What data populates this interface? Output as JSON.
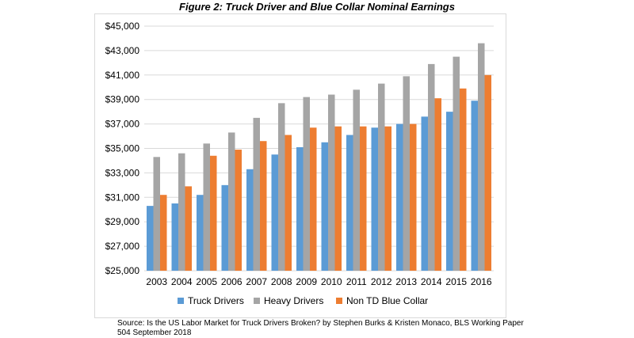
{
  "title": "Figure 2: Truck Driver and Blue Collar Nominal Earnings",
  "source": "Source: Is the US Labor Market for Truck Drivers Broken?  by Stephen Burks & Kristen Monaco, BLS Working Paper 504 September 2018",
  "colors": {
    "truck_drivers": "#5b9bd5",
    "heavy_drivers": "#a5a5a5",
    "non_td_blue_collar": "#ed7d31",
    "gridline": "#d9d9d9"
  },
  "chart_data": {
    "type": "bar",
    "title": "Figure 2: Truck Driver and Blue Collar Nominal Earnings",
    "xlabel": "",
    "ylabel": "",
    "ylim": [
      25000,
      45000
    ],
    "yticks": [
      25000,
      27000,
      29000,
      31000,
      33000,
      35000,
      37000,
      39000,
      41000,
      43000,
      45000
    ],
    "ytick_labels": [
      "$25,000",
      "$27,000",
      "$29,000",
      "$31,000",
      "$33,000",
      "$35,000",
      "$37,000",
      "$39,000",
      "$41,000",
      "$43,000",
      "$45,000"
    ],
    "grid": true,
    "legend": "bottom",
    "categories": [
      "2003",
      "2004",
      "2005",
      "2006",
      "2007",
      "2008",
      "2009",
      "2010",
      "2011",
      "2012",
      "2013",
      "2014",
      "2015",
      "2016"
    ],
    "series": [
      {
        "name": "Truck Drivers",
        "values": [
          30300,
          30500,
          31200,
          32000,
          33300,
          34500,
          35100,
          35500,
          36100,
          36700,
          37000,
          37600,
          38000,
          38900
        ]
      },
      {
        "name": "Heavy Drivers",
        "values": [
          34300,
          34600,
          35400,
          36300,
          37500,
          38700,
          39200,
          39400,
          39800,
          40300,
          40900,
          41900,
          42500,
          43600
        ]
      },
      {
        "name": "Non TD Blue Collar",
        "values": [
          31200,
          31900,
          34400,
          34900,
          35600,
          36100,
          36700,
          36800,
          36800,
          36800,
          37000,
          39100,
          39900,
          41000
        ]
      }
    ]
  }
}
